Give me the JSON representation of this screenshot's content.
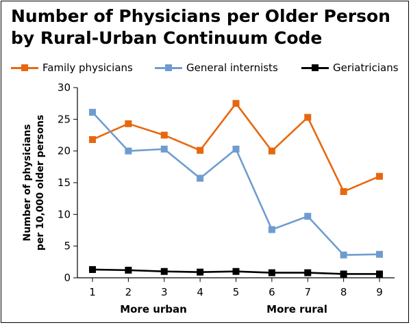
{
  "title_lines": [
    "Number of Physicians per Older Person",
    "by Rural-Urban Continuum Code"
  ],
  "colors": {
    "family": "#e8670e",
    "internists": "#6f9ccf",
    "geriatricians": "#000000"
  },
  "chart_data": {
    "type": "line",
    "title": "Number of Physicians per Older Person by Rural-Urban Continuum Code",
    "ylabel": "Number of physicians per 10,000 older persons",
    "ylabel_lines": [
      "Number of physicians",
      "per 10,000 older persons"
    ],
    "xlabel_left": "More urban",
    "xlabel_right": "More rural",
    "x": [
      1,
      2,
      3,
      4,
      5,
      6,
      7,
      8,
      9
    ],
    "x_tick_labels": [
      "1",
      "2",
      "3",
      "4",
      "5",
      "6",
      "7",
      "8",
      "9"
    ],
    "ylim": [
      0,
      30
    ],
    "y_ticks": [
      0,
      5,
      10,
      15,
      20,
      25,
      30
    ],
    "y_tick_labels": [
      "0",
      "5",
      "10",
      "15",
      "20",
      "25",
      "30"
    ],
    "grid": false,
    "legend_position": "top",
    "series": [
      {
        "name": "Family physicians",
        "color": "#e8670e",
        "values": [
          21.8,
          24.3,
          22.5,
          20.1,
          27.5,
          20.0,
          25.3,
          13.6,
          16.0
        ]
      },
      {
        "name": "General internists",
        "color": "#6f9ccf",
        "values": [
          26.1,
          20.0,
          20.3,
          15.7,
          20.3,
          7.6,
          9.7,
          3.6,
          3.7
        ]
      },
      {
        "name": "Geriatricians",
        "color": "#000000",
        "values": [
          1.3,
          1.2,
          1.0,
          0.9,
          1.0,
          0.8,
          0.8,
          0.6,
          0.6
        ]
      }
    ]
  }
}
